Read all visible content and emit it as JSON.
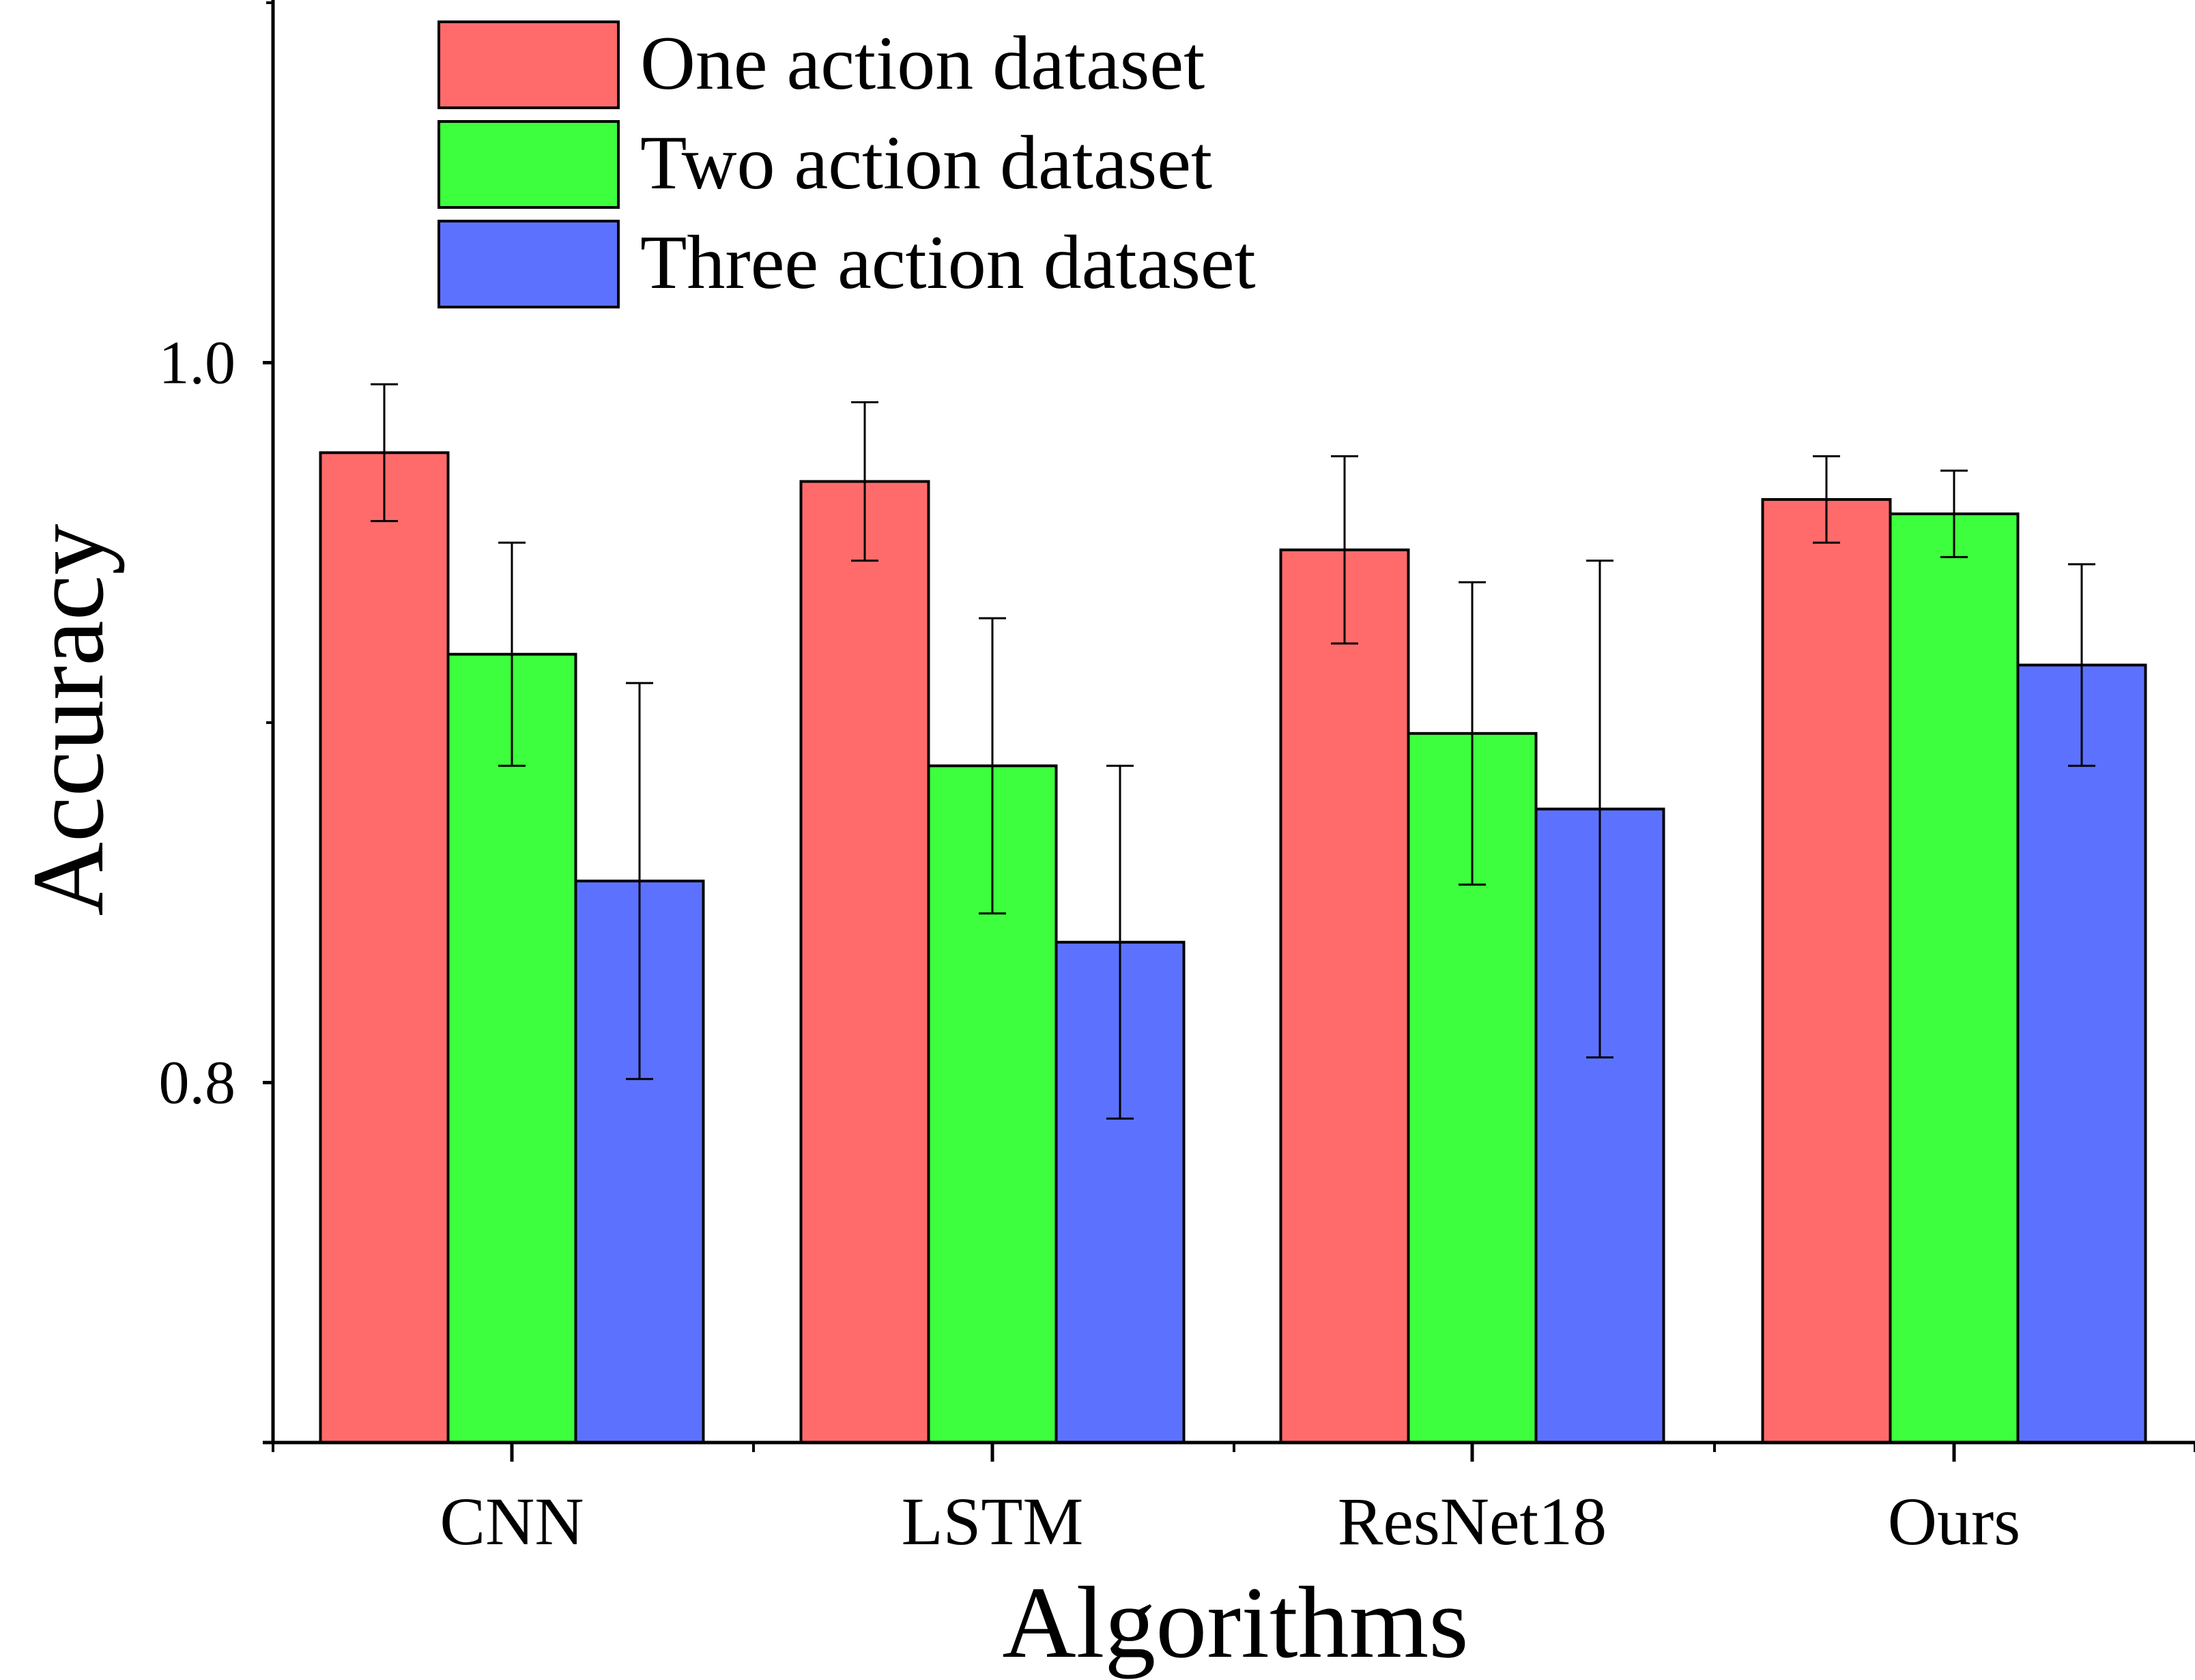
{
  "chart_data": {
    "type": "bar",
    "title": "",
    "xlabel": "Algorithms",
    "ylabel": "Accuracy",
    "categories": [
      "CNN",
      "LSTM",
      "ResNet18",
      "Ours"
    ],
    "ylim": [
      0.7,
      1.1
    ],
    "yticks": [
      0.8,
      1.0
    ],
    "ytick_labels": [
      "0.8",
      "1.0"
    ],
    "legend_position": "top-left",
    "series": [
      {
        "name": "One action dataset",
        "color": "#FF6B6B",
        "values": [
          0.975,
          0.967,
          0.948,
          0.962
        ],
        "errors": [
          0.019,
          0.022,
          0.026,
          0.012
        ]
      },
      {
        "name": "Two action dataset",
        "color": "#3DFF3D",
        "values": [
          0.919,
          0.888,
          0.897,
          0.958
        ],
        "errors": [
          0.031,
          0.041,
          0.042,
          0.012
        ]
      },
      {
        "name": "Three action dataset",
        "color": "#5C72FF",
        "values": [
          0.856,
          0.839,
          0.876,
          0.916
        ],
        "errors": [
          0.055,
          0.049,
          0.069,
          0.028
        ]
      }
    ]
  }
}
